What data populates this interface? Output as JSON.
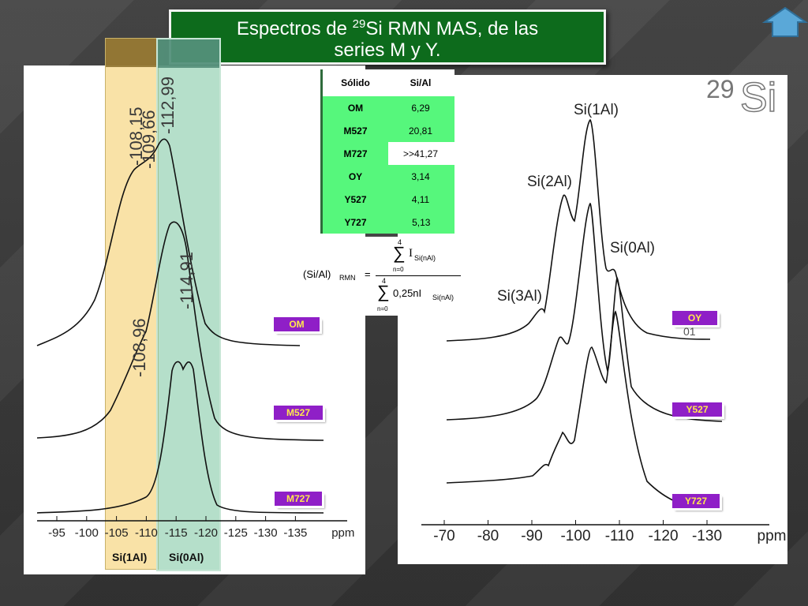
{
  "slide": {
    "title_pre": "Espectros de ",
    "title_sup": "29",
    "title_rest": "Si RMN MAS, de las",
    "title_line2": "series M y Y."
  },
  "home_button": {
    "icon": "home-up-arrow-icon",
    "color": "#4aa3d9"
  },
  "table": {
    "headers": [
      "Sólido",
      "Si/Al"
    ],
    "rows": [
      [
        "OM",
        "6,29"
      ],
      [
        "M527",
        "20,81"
      ],
      [
        "M727",
        ">>41,27"
      ],
      [
        "OY",
        "3,14"
      ],
      [
        "Y527",
        "4,11"
      ],
      [
        "Y727",
        "5,13"
      ]
    ]
  },
  "formula": {
    "lhs": "(Si/Al)",
    "lhs_sub": "RMN",
    "eq": "=",
    "num_sup": "4",
    "num_sub": "n=0",
    "num_term": "I",
    "num_term_sub": "Si(nAl)",
    "den_sup": "4",
    "den_sub": "n=0",
    "den_term": "0,25nI",
    "den_term_sub": "Si(nAl)"
  },
  "left_chart": {
    "peak_labels": [
      "-108,15",
      "-109,66",
      "-112,99",
      "-114,91",
      "-108,96"
    ],
    "axis_ticks": [
      "-95",
      "-100",
      "-105",
      "-110",
      "-115",
      "-120",
      "-125",
      "-130",
      "-135"
    ],
    "axis_unit": "ppm",
    "samples": [
      "OM",
      "M527",
      "M727"
    ],
    "band_labels": [
      "Si(1Al)",
      "Si(0Al)"
    ]
  },
  "right_chart": {
    "nucleus_mass": "29",
    "nucleus": "Si",
    "peak_labels": [
      "Si(1Al)",
      "Si(2Al)",
      "Si(0Al)",
      "Si(3Al)"
    ],
    "axis_ticks": [
      "-70",
      "-80",
      "-90",
      "-100",
      "-110",
      "-120",
      "-130"
    ],
    "axis_unit": "ppm",
    "samples": [
      "OY",
      "Y527",
      "Y727"
    ],
    "stray_label": "01"
  },
  "colors": {
    "title_bg": "#0d6b1c",
    "band_si1": "#f7d681",
    "band_si0": "#88ccaa",
    "table_cells": "#56f77c",
    "badge_bg": "#8f1fc7",
    "badge_text": "#ffe84d"
  }
}
